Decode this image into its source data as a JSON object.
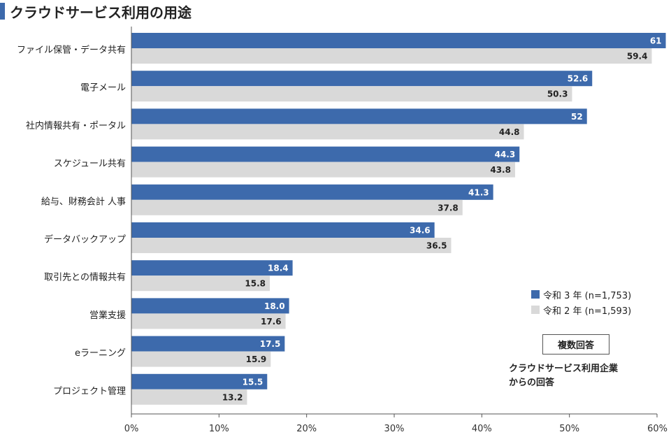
{
  "chart_data": {
    "type": "bar",
    "orientation": "horizontal",
    "title": "クラウドサービス利用の用途",
    "categories": [
      "ファイル保管・データ共有",
      "電子メール",
      "社内情報共有・ポータル",
      "スケジュール共有",
      "給与、財務会計 人事",
      "データバックアップ",
      "取引先との情報共有",
      "営業支援",
      "eラーニング",
      "プロジェクト管理"
    ],
    "series": [
      {
        "name": "令和 3 年 (n=1,753)",
        "color": "#3d6aac",
        "values": [
          61,
          52.6,
          52,
          44.3,
          41.3,
          34.6,
          18.4,
          18.0,
          17.5,
          15.5
        ],
        "labels": [
          "61",
          "52.6",
          "52",
          "44.3",
          "41.3",
          "34.6",
          "18.4",
          "18.0",
          "17.5",
          "15.5"
        ]
      },
      {
        "name": "令和 2 年 (n=1,593)",
        "color": "#d9d9d9",
        "values": [
          59.4,
          50.3,
          44.8,
          43.8,
          37.8,
          36.5,
          15.8,
          17.6,
          15.9,
          13.2
        ],
        "labels": [
          "59.4",
          "50.3",
          "44.8",
          "43.8",
          "37.8",
          "36.5",
          "15.8",
          "17.6",
          "15.9",
          "13.2"
        ]
      }
    ],
    "xlim": [
      0,
      60
    ],
    "xticks": [
      0,
      10,
      20,
      30,
      40,
      50,
      60
    ],
    "xtick_labels": [
      "0%",
      "10%",
      "20%",
      "30%",
      "40%",
      "50%",
      "60%"
    ],
    "grid": false,
    "legend": {
      "position": "right",
      "items": [
        "令和 3 年 (n=1,753)",
        "令和 2 年 (n=1,593)"
      ]
    },
    "annotations": {
      "box": "複数回答",
      "note_lines": [
        "クラウドサービス利用企業",
        "からの回答"
      ]
    }
  }
}
